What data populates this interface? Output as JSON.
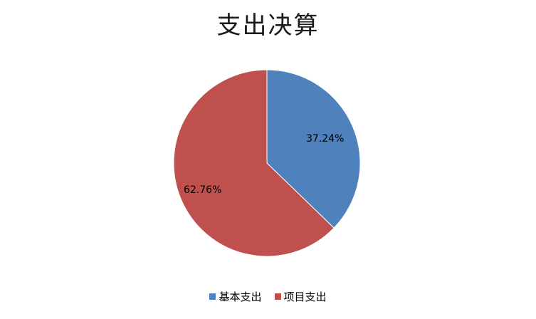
{
  "chart_data": {
    "type": "pie",
    "title": "支出决算",
    "categories": [
      "基本支出",
      "项目支出"
    ],
    "values": [
      37.24,
      62.76
    ],
    "labels": [
      "37.24%",
      "62.76%"
    ],
    "colors": [
      "#4F81BD",
      "#C0504D"
    ],
    "legend_position": "bottom",
    "start_angle_deg": 0,
    "direction": "clockwise"
  }
}
